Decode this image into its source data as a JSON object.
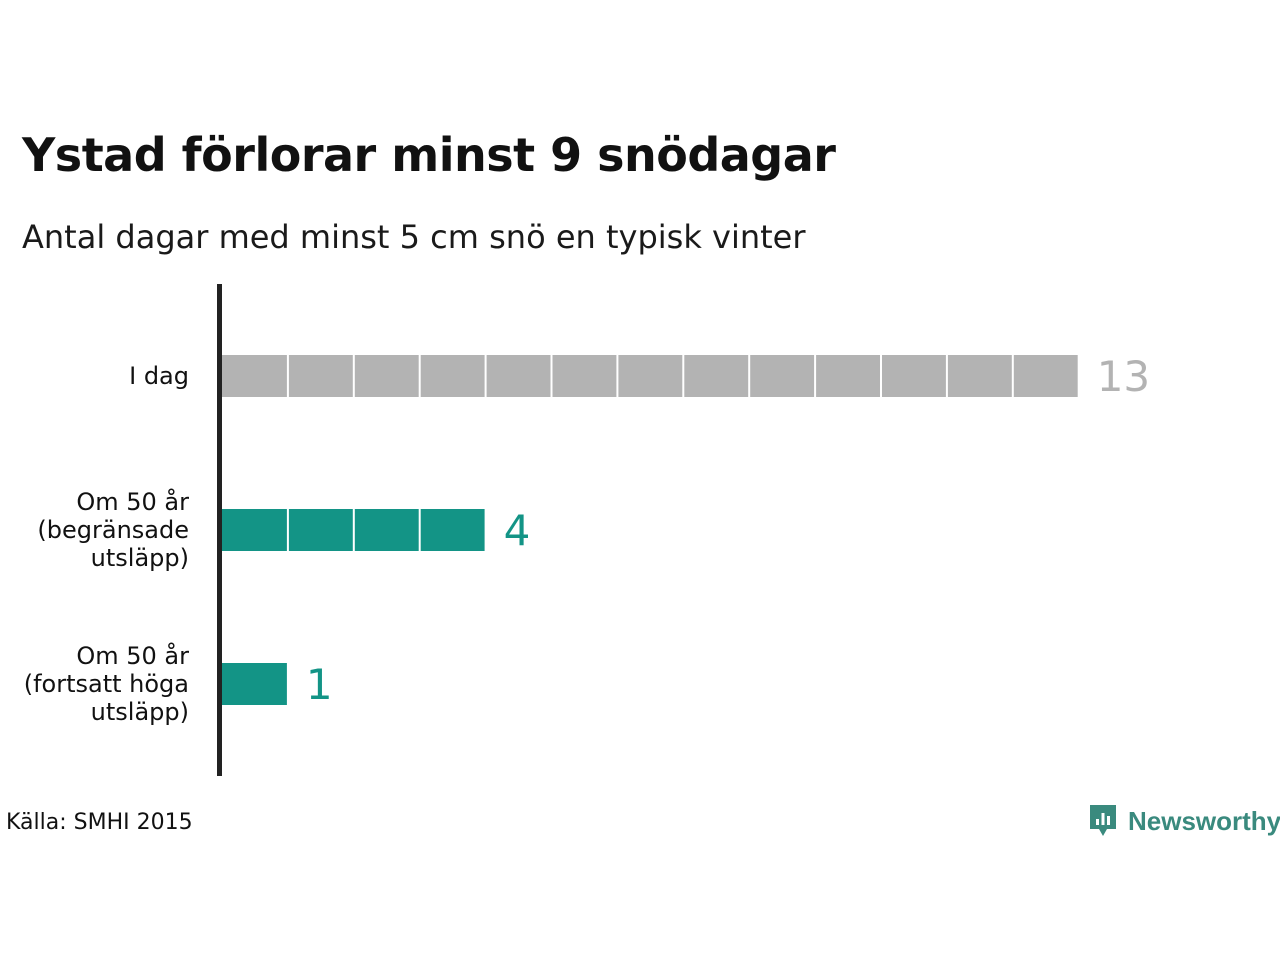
{
  "title": "Ystad förlorar minst 9 snödagar",
  "subtitle": "Antal dagar med minst 5 cm snö en typisk vinter",
  "source": "Källa: SMHI 2015",
  "brand": {
    "name": "Newsworthy",
    "icon": "newsworthy-logo-icon",
    "color": "#3a8a7e"
  },
  "chart_data": {
    "type": "bar",
    "orientation": "horizontal",
    "title": "Ystad förlorar minst 9 snödagar",
    "subtitle": "Antal dagar med minst 5 cm snö en typisk vinter",
    "categories": [
      [
        "I dag"
      ],
      [
        "Om 50 år",
        "(begränsade",
        "utsläpp)"
      ],
      [
        "Om 50 år",
        "(fortsatt höga",
        "utsläpp)"
      ]
    ],
    "values": [
      13,
      4,
      1
    ],
    "value_labels": [
      "13",
      "4",
      "1"
    ],
    "colors": [
      "#b3b3b3",
      "#139486",
      "#139486"
    ],
    "label_colors": [
      "#b3b3b3",
      "#139486",
      "#139486"
    ],
    "xlim": [
      0,
      13
    ],
    "grid": false,
    "segmented": true
  }
}
